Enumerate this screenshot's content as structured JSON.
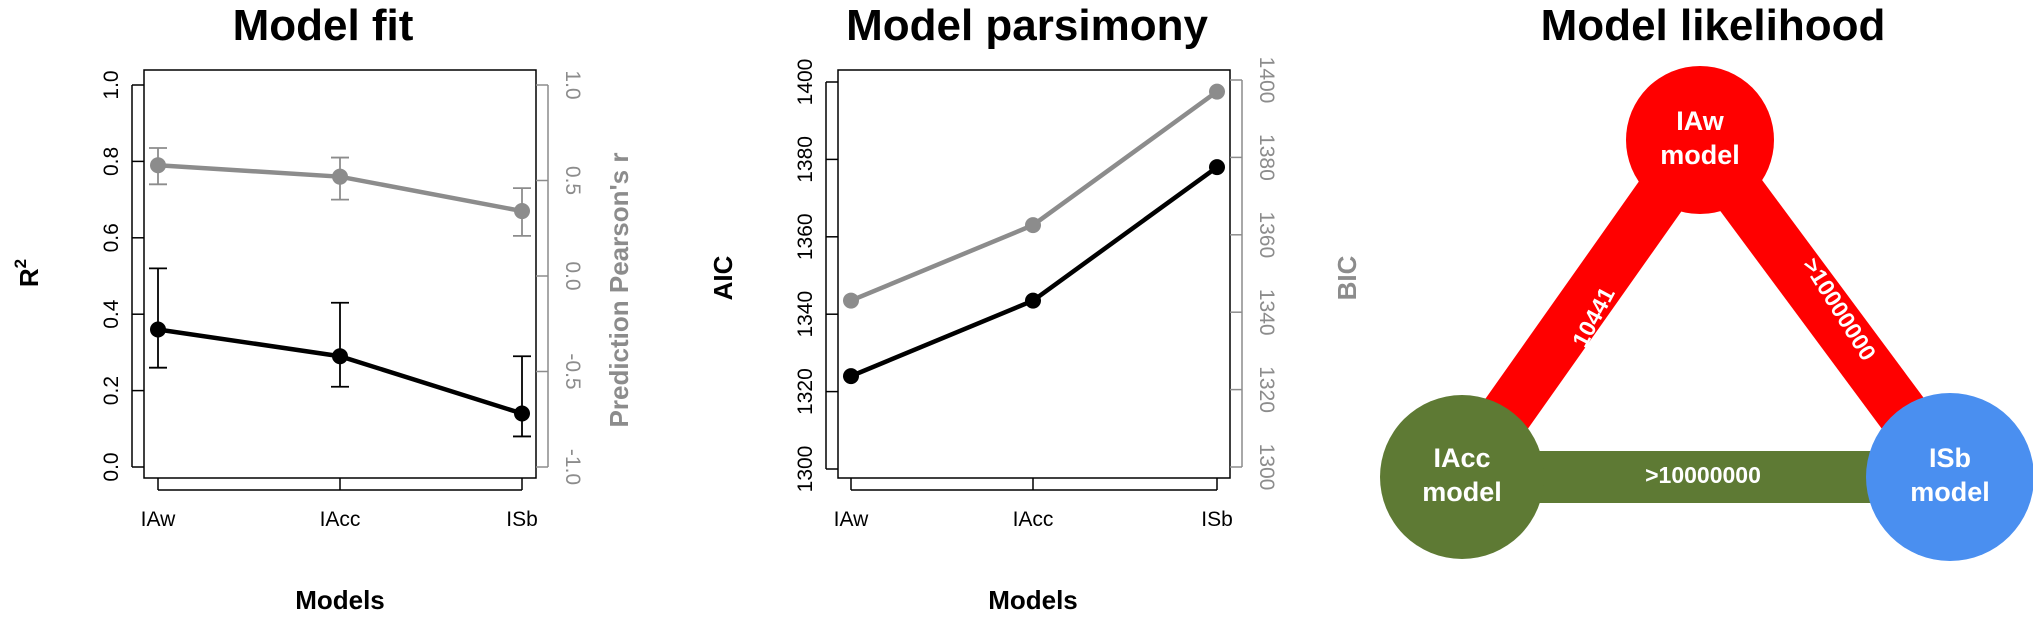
{
  "chart_data": [
    {
      "type": "line",
      "title": "Model fit",
      "xlabel": "Models",
      "ylabel": "R²",
      "ylabel_base": "R",
      "ylabel_sup": "2",
      "y2label": "Prediction Pearson's r",
      "categories": [
        "IAw",
        "IAcc",
        "ISb"
      ],
      "ylim": [
        0,
        1
      ],
      "yticks": [
        "0.0",
        "0.2",
        "0.4",
        "0.6",
        "0.8",
        "1.0"
      ],
      "y2lim": [
        -1,
        1
      ],
      "y2ticks": [
        "-1.0",
        "-0.5",
        "0.0",
        "0.5",
        "1.0"
      ],
      "series": [
        {
          "axis": "left",
          "color": "#000000",
          "values": [
            0.36,
            0.29,
            0.14
          ],
          "err_low": [
            0.26,
            0.21,
            0.08
          ],
          "err_high": [
            0.52,
            0.43,
            0.29
          ]
        },
        {
          "axis": "right",
          "color": "#8c8c8c",
          "values": [
            0.58,
            0.52,
            0.34
          ],
          "err_low": [
            0.48,
            0.4,
            0.21
          ],
          "err_high": [
            0.67,
            0.62,
            0.46
          ]
        }
      ]
    },
    {
      "type": "line",
      "title": "Model parsimony",
      "xlabel": "Models",
      "ylabel": "AIC",
      "y2label": "BIC",
      "categories": [
        "IAw",
        "IAcc",
        "ISb"
      ],
      "ylim": [
        1300,
        1400
      ],
      "yticks": [
        "1300",
        "1320",
        "1340",
        "1360",
        "1380",
        "1400"
      ],
      "y2lim": [
        1300,
        1400
      ],
      "y2ticks": [
        "1300",
        "1320",
        "1340",
        "1360",
        "1380",
        "1400"
      ],
      "series": [
        {
          "axis": "left",
          "color": "#000000",
          "values": [
            1324,
            1343.5,
            1378
          ]
        },
        {
          "axis": "right",
          "color": "#8c8c8c",
          "values": [
            1343,
            1362.5,
            1397
          ]
        }
      ]
    },
    {
      "type": "diagram",
      "title": "Model likelihood",
      "nodes": [
        {
          "id": "iaw",
          "line1": "IAw",
          "line2": "model",
          "color": "#ff0000"
        },
        {
          "id": "iacc",
          "line1": "IAcc",
          "line2": "model",
          "color": "#5e7a34"
        },
        {
          "id": "isb",
          "line1": "ISb",
          "line2": "model",
          "color": "#4a8ff0"
        }
      ],
      "edges": [
        {
          "from": "iaw",
          "to": "iacc",
          "label": "10441",
          "color": "#ff0000"
        },
        {
          "from": "iaw",
          "to": "isb",
          "label": ">10000000",
          "color": "#ff0000"
        },
        {
          "from": "iacc",
          "to": "isb",
          "label": ">10000000",
          "color": "#5e7a34"
        }
      ]
    }
  ]
}
